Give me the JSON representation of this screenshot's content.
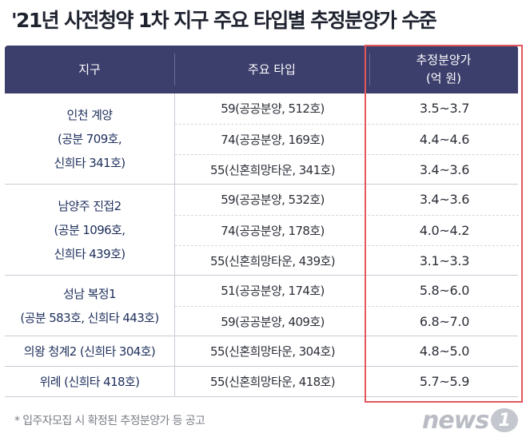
{
  "title": "'21년 사전청약 1차 지구 주요 타입별 추정분양가 수준",
  "header": {
    "col_region": "지구",
    "col_type": "주요 타입",
    "col_price_line1": "추정분양가",
    "col_price_line2": "(억 원)"
  },
  "groups": [
    {
      "region_lines": [
        "인천 계양",
        "(공분 709호,",
        "신희타 341호)"
      ],
      "rows": [
        {
          "type": "59(공공분양, 512호)",
          "price": "3.5~3.7"
        },
        {
          "type": "74(공공분양, 169호)",
          "price": "4.4~4.6"
        },
        {
          "type": "55(신혼희망타운, 341호)",
          "price": "3.4~3.6"
        }
      ]
    },
    {
      "region_lines": [
        "남양주 진접2",
        "(공분 1096호,",
        "신희타 439호)"
      ],
      "rows": [
        {
          "type": "59(공공분양, 532호)",
          "price": "3.4~3.6"
        },
        {
          "type": "74(공공분양, 178호)",
          "price": "4.0~4.2"
        },
        {
          "type": "55(신혼희망타운, 439호)",
          "price": "3.1~3.3"
        }
      ]
    },
    {
      "region_lines": [
        "성남 복정1",
        "(공분 583호, 신희타 443호)"
      ],
      "rows": [
        {
          "type": "51(공공분양, 174호)",
          "price": "5.8~6.0"
        },
        {
          "type": "59(공공분양, 409호)",
          "price": "6.8~7.0"
        }
      ]
    },
    {
      "region_lines": [
        "의왕 청계2 (신희타 304호)"
      ],
      "rows": [
        {
          "type": "55(신혼희망타운, 304호)",
          "price": "4.8~5.0"
        }
      ]
    },
    {
      "region_lines": [
        "위례 (신희타 418호)"
      ],
      "rows": [
        {
          "type": "55(신혼희망타운, 418호)",
          "price": "5.7~5.9"
        }
      ]
    }
  ],
  "footnote": "* 입주자모집 시 확정된 추정분양가 등 공고",
  "logo": {
    "text": "news",
    "badge": "1"
  },
  "colors": {
    "header_bg": "#3c3e6c",
    "highlight_border": "#e5575a",
    "region_text": "#1e2f5c"
  }
}
